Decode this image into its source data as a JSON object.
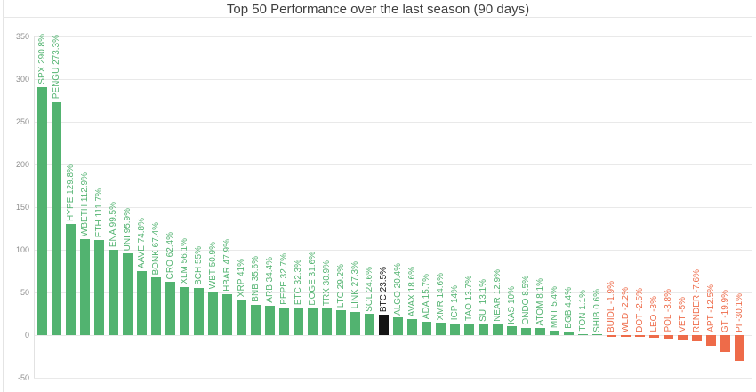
{
  "chart_data": {
    "type": "bar",
    "title": "Top 50 Performance over the last season (90 days)",
    "categories": [
      "SPX",
      "PENGU",
      "HYPE",
      "WBETH",
      "ETH",
      "ENA",
      "UNI",
      "AAVE",
      "BONK",
      "CRO",
      "XLM",
      "BCH",
      "WBT",
      "HBAR",
      "XRP",
      "BNB",
      "ARB",
      "PEPE",
      "ETC",
      "DOGE",
      "TRX",
      "LTC",
      "LINK",
      "SOL",
      "BTC",
      "ALGO",
      "AVAX",
      "ADA",
      "XMR",
      "ICP",
      "TAO",
      "SUI",
      "NEAR",
      "KAS",
      "ONDO",
      "ATOM",
      "MNT",
      "BGB",
      "TON",
      "SHIB",
      "BUIDL",
      "WLD",
      "DOT",
      "LEO",
      "POL",
      "VET",
      "RENDER",
      "APT",
      "GT",
      "PI"
    ],
    "values": [
      290.8,
      273.3,
      129.8,
      112.9,
      111.7,
      99.5,
      95.9,
      74.8,
      67.4,
      62.4,
      56.1,
      55,
      50.9,
      47.9,
      41,
      35.6,
      34.4,
      32.7,
      32.3,
      31.6,
      30.9,
      29.2,
      27.3,
      24.6,
      23.5,
      20.4,
      18.6,
      15.7,
      14.6,
      14,
      13.7,
      13.1,
      12.9,
      10,
      8.5,
      8.1,
      5.4,
      4.4,
      1.1,
      0.6,
      -1.9,
      -2.2,
      -2.5,
      -3,
      -3.8,
      -5,
      -7.6,
      -12.5,
      -19.9,
      -30.1
    ],
    "value_suffix": "%",
    "highlight_category": "BTC",
    "colors": {
      "positive": "#52b370",
      "negative": "#ee6b49",
      "highlight": "#141414"
    },
    "ylim": [
      -50,
      350
    ],
    "yticks": [
      350,
      300,
      250,
      200,
      150,
      100,
      50,
      0,
      -50
    ],
    "grid": true,
    "legend": null,
    "xlabel": "",
    "ylabel": ""
  }
}
